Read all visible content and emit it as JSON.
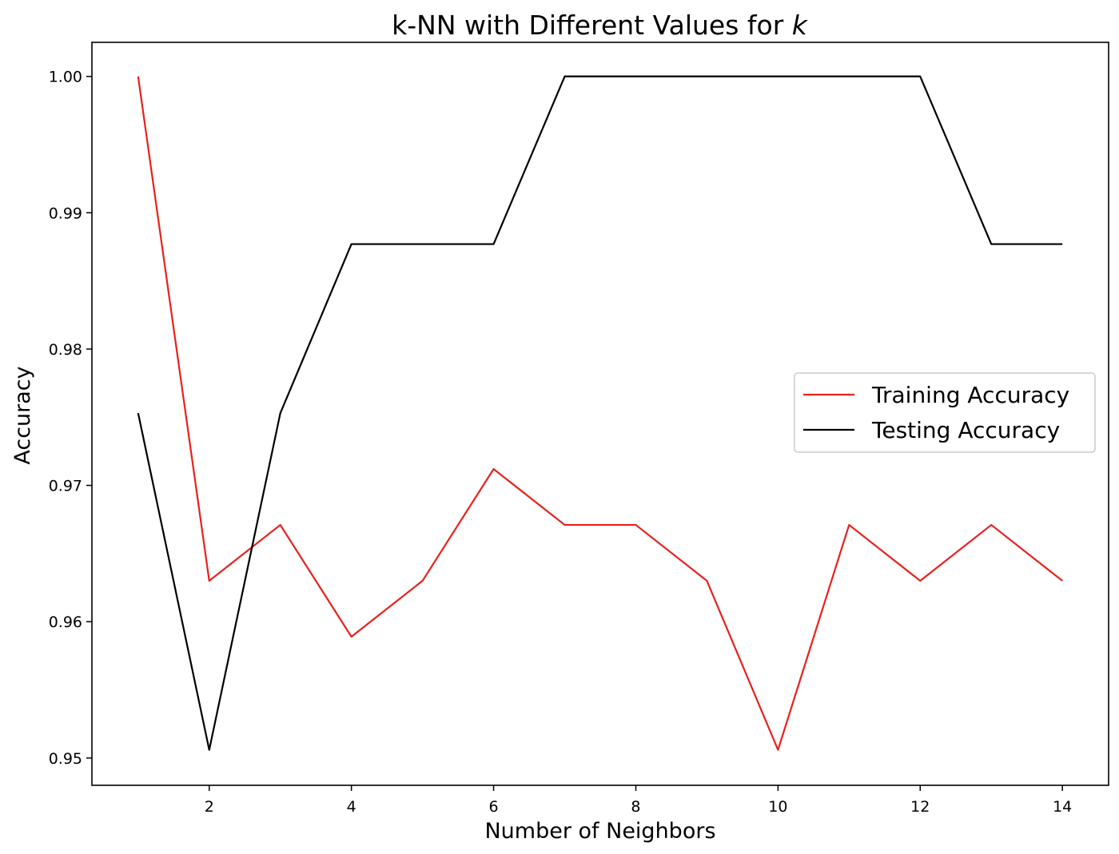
{
  "chart_data": {
    "type": "line",
    "title": {
      "prefix": "k-NN with Different Values for ",
      "italic_k": "k"
    },
    "xlabel": "Number of Neighbors",
    "ylabel": "Accuracy",
    "xlim": [
      0.35,
      14.65
    ],
    "ylim": [
      0.948,
      1.0025
    ],
    "xticks": [
      2,
      4,
      6,
      8,
      10,
      12,
      14
    ],
    "xtick_labels": [
      "2",
      "4",
      "6",
      "8",
      "10",
      "12",
      "14"
    ],
    "yticks": [
      0.95,
      0.96,
      0.97,
      0.98,
      0.99,
      1.0
    ],
    "ytick_labels": [
      "0.95",
      "0.96",
      "0.97",
      "0.98",
      "0.99",
      "1.00"
    ],
    "x": [
      1,
      2,
      3,
      4,
      5,
      6,
      7,
      8,
      9,
      10,
      11,
      12,
      13,
      14
    ],
    "series": [
      {
        "name": "Training Accuracy",
        "color": "#e8201c",
        "values": [
          1.0,
          0.963,
          0.9671,
          0.9589,
          0.963,
          0.9712,
          0.9671,
          0.9671,
          0.963,
          0.9506,
          0.9671,
          0.963,
          0.9671,
          0.963
        ]
      },
      {
        "name": "Testing Accuracy",
        "color": "#000000",
        "values": [
          0.9753,
          0.9506,
          0.9753,
          0.9877,
          0.9877,
          0.9877,
          1.0,
          1.0,
          1.0,
          1.0,
          1.0,
          1.0,
          0.9877,
          0.9877
        ]
      }
    ],
    "legend_position": "center-right",
    "grid": false
  }
}
